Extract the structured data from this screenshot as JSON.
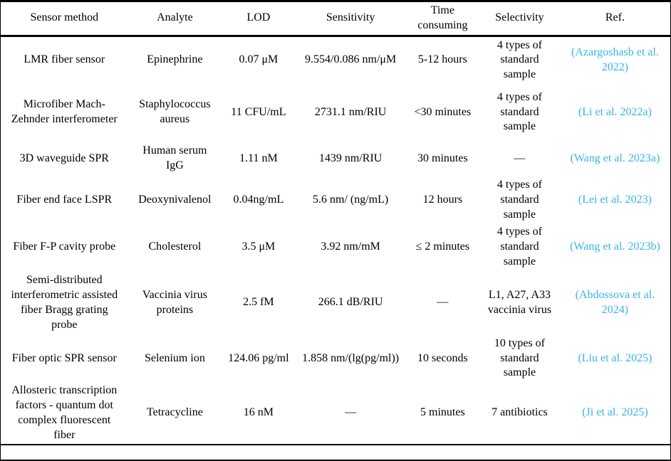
{
  "accent": {
    "ref_link_color": "#35B5E8",
    "text_color": "#000000",
    "rule_color": "#000000"
  },
  "table": {
    "columns": [
      {
        "label": "Sensor method"
      },
      {
        "label": "Analyte"
      },
      {
        "label": "LOD"
      },
      {
        "label": "Sensitivity"
      },
      {
        "label": "Time consuming"
      },
      {
        "label": "Selectivity"
      },
      {
        "label": "Ref."
      }
    ],
    "rows": [
      {
        "method": "LMR fiber sensor",
        "analyte": "Epinephrine",
        "lod": "0.07 μM",
        "sensitivity": "9.554/0.086 nm/μM",
        "time_consuming": "5-12 hours",
        "selectivity": "4 types of standard sample",
        "ref": "(Azargoshasb et al. 2022)"
      },
      {
        "method": "Microfiber Mach-Zehnder interferometer",
        "analyte": "Staphylococcus aureus",
        "lod": "11 CFU/mL",
        "sensitivity": "2731.1 nm/RIU",
        "time_consuming": "<30 minutes",
        "selectivity": "4 types of standard sample",
        "ref": "(Li et al. 2022a)"
      },
      {
        "method": "3D waveguide SPR",
        "analyte": "Human serum IgG",
        "lod": "1.11 nM",
        "sensitivity": "1439 nm/RIU",
        "time_consuming": "30 minutes",
        "selectivity": "—",
        "ref": "(Wang et al. 2023a)"
      },
      {
        "method": "Fiber end face LSPR",
        "analyte": "Deoxynivalenol",
        "lod": "0.04ng/mL",
        "sensitivity": "5.6 nm/ (ng/mL)",
        "time_consuming": "12 hours",
        "selectivity": "4 types of standard sample",
        "ref": "(Lei et al. 2023)"
      },
      {
        "method": "Fiber F-P cavity probe",
        "analyte": "Cholesterol",
        "lod": "3.5 μM",
        "sensitivity": "3.92 nm/mM",
        "time_consuming": "≤ 2 minutes",
        "selectivity": "4 types of standard sample",
        "ref": "(Wang et al. 2023b)"
      },
      {
        "method": "Semi-distributed interferometric assisted fiber Bragg grating probe",
        "analyte": "Vaccinia virus proteins",
        "lod": "2.5 fM",
        "sensitivity": "266.1 dB/RIU",
        "time_consuming": "—",
        "selectivity": "L1, A27, A33 vaccinia virus",
        "ref": "(Abdossova et al. 2024)"
      },
      {
        "method": "Fiber optic SPR sensor",
        "analyte": "Selenium ion",
        "lod": "124.06 pg/ml",
        "sensitivity": "1.858 nm/(lg(pg/ml))",
        "time_consuming": "10 seconds",
        "selectivity": "10 types of standard sample",
        "ref": "(Liu et al. 2025)"
      },
      {
        "method": "Allosteric transcription factors - quantum dot complex fluorescent fiber",
        "analyte": "Tetracycline",
        "lod": "16 nM",
        "sensitivity": "—",
        "time_consuming": "5 minutes",
        "selectivity": "7 antibiotics",
        "ref": "(Ji et al. 2025)"
      }
    ]
  }
}
